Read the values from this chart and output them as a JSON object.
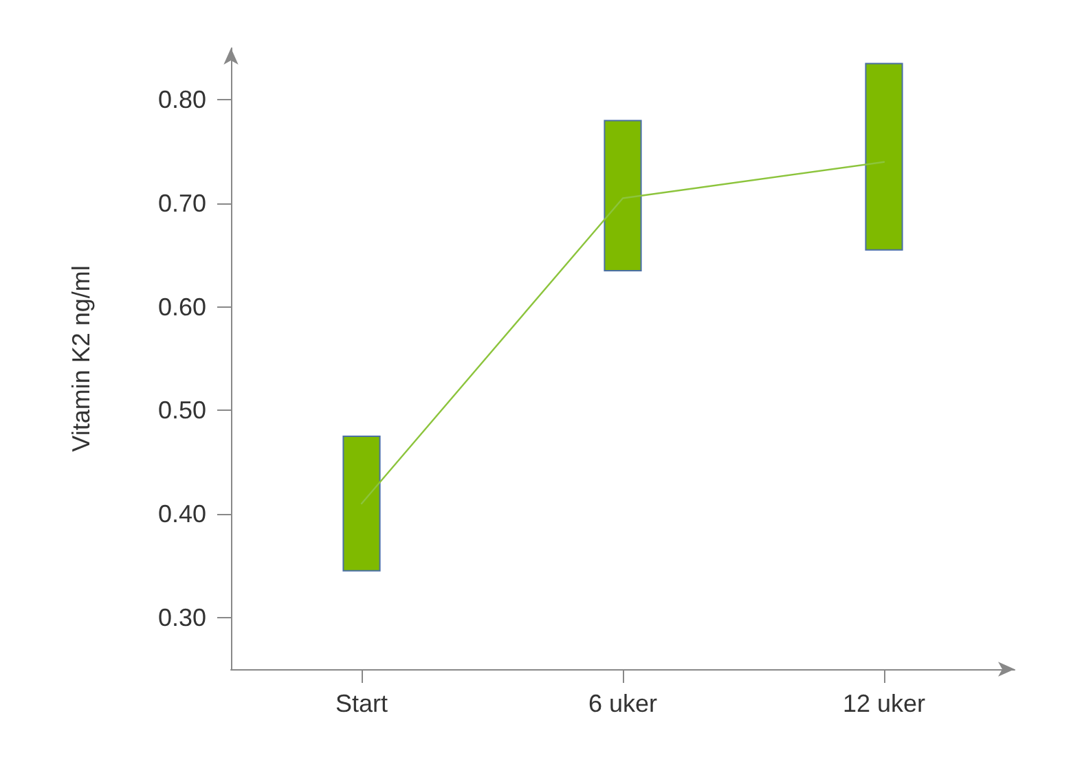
{
  "chart_data": {
    "type": "bar",
    "ylabel": "Vitamin K2 ng/ml",
    "categories": [
      "Start",
      "6 uker",
      "12 uker"
    ],
    "ylim": [
      0.25,
      0.85
    ],
    "yticks": [
      {
        "value": 0.3,
        "label": "0.30"
      },
      {
        "value": 0.4,
        "label": "0.40"
      },
      {
        "value": 0.5,
        "label": "0.50"
      },
      {
        "value": 0.6,
        "label": "0.60"
      },
      {
        "value": 0.7,
        "label": "0.70"
      },
      {
        "value": 0.8,
        "label": "0.80"
      }
    ],
    "grid": false,
    "series": [
      {
        "color": "#7fba00",
        "base": [
          0.345,
          0.635,
          0.655
        ],
        "values": [
          0.13,
          0.145,
          0.18
        ]
      },
      {
        "type": "line",
        "color": "#8cc43c",
        "marker": "none",
        "line_style": "solid",
        "values": [
          0.41,
          0.705,
          0.74
        ]
      }
    ]
  }
}
